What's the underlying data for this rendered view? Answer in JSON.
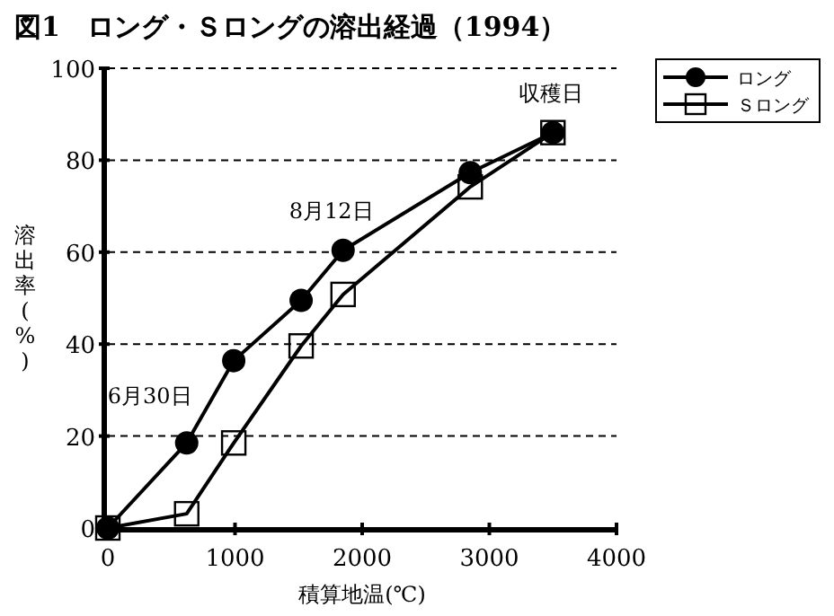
{
  "chart_data": {
    "type": "line",
    "title": "図1　ロング・Ｓロングの溶出経過（1994）",
    "xlabel": "積算地温(℃)",
    "ylabel": "溶出率(%)",
    "xlim": [
      0,
      4000
    ],
    "xticks": [
      0,
      1000,
      2000,
      3000,
      4000
    ],
    "ylim": [
      0,
      100
    ],
    "yticks": [
      0,
      20,
      40,
      60,
      80,
      100
    ],
    "grid": "y",
    "legend": "top right",
    "line_style": "solid",
    "series": [
      {
        "name": "ロング",
        "color": "#000000",
        "marker": "circle",
        "x": [
          0,
          620,
          990,
          1520,
          1850,
          2850,
          3500
        ],
        "values": [
          0,
          18.5,
          36.4,
          49.5,
          60.4,
          77.3,
          86
        ]
      },
      {
        "name": "Ｓロング",
        "color": "#000000",
        "marker": "square",
        "x": [
          0,
          620,
          990,
          1520,
          1850,
          2850,
          3500
        ],
        "values": [
          0,
          3.1,
          18.5,
          39.6,
          50.8,
          74.2,
          86
        ]
      }
    ],
    "annotations": [
      {
        "text": "6月30日",
        "x": 620,
        "y": 18.5
      },
      {
        "text": "8月12日",
        "x": 1850,
        "y": 60.4
      },
      {
        "text": "収穫日",
        "x": 3500,
        "y": 86
      }
    ]
  }
}
